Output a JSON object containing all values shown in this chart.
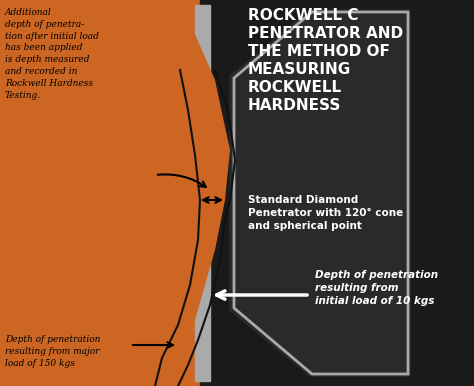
{
  "bg_color": "#c8c8c8",
  "orange_color": "#cc6622",
  "dark_color": "#1a1a1a",
  "gray_color": "#888888",
  "light_gray": "#aaaaaa",
  "title_line1": "ROCKWELL C",
  "title_line2": "PENETRATOR AND",
  "title_line3": "THE METHOD OF",
  "title_line4": "MEASURING",
  "title_line5": "ROCKWELL",
  "title_line6": "HARDNESS",
  "subtitle": "Standard Diamond\nPenetrator with 120° cone\nand spherical point",
  "note_top": "Additional\ndepth of penetra-\ntion after initial load\nhas been applied\nis depth measured\nand recorded in\nRockwell Hardness\nTesting.",
  "note_bottom_left": "Depth of penetration\nresulting from major\nload of 150 kgs",
  "note_bottom_right": "Depth of penetration\nresulting from\ninitial load of 10 kgs",
  "fig_width": 4.74,
  "fig_height": 3.86,
  "dpi": 100
}
